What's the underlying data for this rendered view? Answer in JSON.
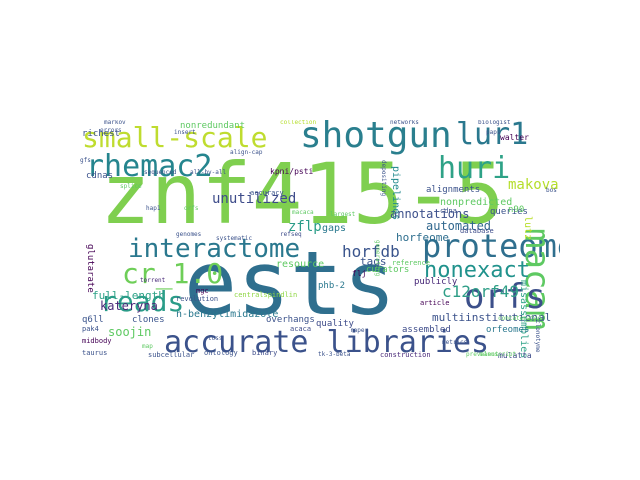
{
  "words": [
    {
      "text": "znf415-5",
      "color": "#7fcf4f"
    },
    {
      "text": "ests",
      "color": "#2f6f8e"
    },
    {
      "text": "shotgun",
      "color": "#2a7f8e"
    },
    {
      "text": "small-scale",
      "color": "#bfdc2f"
    },
    {
      "text": "lur1",
      "color": "#2a788e"
    },
    {
      "text": "rhemac2",
      "color": "#25858e"
    },
    {
      "text": "huri",
      "color": "#2ea287"
    },
    {
      "text": "interactome",
      "color": "#2a788e"
    },
    {
      "text": "proteome",
      "color": "#2f6f8e"
    },
    {
      "text": "macam",
      "color": "#5ec962"
    },
    {
      "text": "cr_1.0",
      "color": "#6ece58"
    },
    {
      "text": "reads",
      "color": "#2a9c88"
    },
    {
      "text": "orfs",
      "color": "#3c4f8a"
    },
    {
      "text": "nonexact",
      "color": "#20928c"
    },
    {
      "text": "accurate libraries",
      "color": "#3b528b"
    },
    {
      "text": "horfdb",
      "color": "#3a548c"
    },
    {
      "text": "c12orf49",
      "color": "#2f9e87"
    },
    {
      "text": "unutilized",
      "color": "#3e4c8a"
    },
    {
      "text": "makova",
      "color": "#b5de2b"
    },
    {
      "text": "zflp",
      "color": "#2a9c88"
    },
    {
      "text": "annotations",
      "color": "#3c508b"
    },
    {
      "text": "automated",
      "color": "#31688e"
    },
    {
      "text": "nonpredicted",
      "color": "#5ec962"
    },
    {
      "text": "horfeome",
      "color": "#2e6e8e"
    },
    {
      "text": "lutz",
      "color": "#b8de29"
    },
    {
      "text": "pipelines",
      "color": "#238a8d"
    },
    {
      "text": "alignments",
      "color": "#3b528b"
    },
    {
      "text": "nonredundant",
      "color": "#5ec962"
    },
    {
      "text": "walter",
      "color": "#440154"
    },
    {
      "text": "richest",
      "color": "#3b528b"
    },
    {
      "text": "glutarate",
      "color": "#440154"
    },
    {
      "text": "resource",
      "color": "#5ec962"
    },
    {
      "text": "gaps",
      "color": "#2a788e"
    },
    {
      "text": "tags",
      "color": "#3a548c"
    },
    {
      "text": "full-length",
      "color": "#2ea287"
    },
    {
      "text": "kateryna",
      "color": "#482878"
    },
    {
      "text": "soojin",
      "color": "#5ec962"
    },
    {
      "text": "n-benzylimidazole",
      "color": "#2a788e"
    },
    {
      "text": "multiinstitutional",
      "color": "#3b528b"
    },
    {
      "text": "curators",
      "color": "#5ec962"
    },
    {
      "text": "publicly",
      "color": "#482878"
    },
    {
      "text": "misassemblies",
      "color": "#2ea287"
    },
    {
      "text": "queries",
      "color": "#3b528b"
    },
    {
      "text": "orfeomes",
      "color": "#2a788e"
    },
    {
      "text": "assembled",
      "color": "#3e4c8a"
    },
    {
      "text": "overhangs",
      "color": "#3b528b"
    },
    {
      "text": "quality",
      "color": "#3e4c8a"
    },
    {
      "text": "phb-2",
      "color": "#2a788e"
    },
    {
      "text": "kpni/psti",
      "color": "#440154"
    },
    {
      "text": "q6ll",
      "color": "#3a548c"
    },
    {
      "text": "clones",
      "color": "#3a548c"
    },
    {
      "text": "cdnas",
      "color": "#3b528b"
    },
    {
      "text": "n90",
      "color": "#5ec962"
    },
    {
      "text": "accuracy",
      "color": "#3a548c"
    },
    {
      "text": "flj",
      "color": "#440154"
    },
    {
      "text": "mgc",
      "color": "#440154"
    },
    {
      "text": "revolution",
      "color": "#3b528b"
    },
    {
      "text": "centralspindlin",
      "color": "#8fd744"
    },
    {
      "text": "reference",
      "color": "#5ec962"
    },
    {
      "text": "database",
      "color": "#3e4c8a"
    },
    {
      "text": "cdna",
      "color": "#3b528b"
    },
    {
      "text": "article",
      "color": "#440154"
    },
    {
      "text": "acaca",
      "color": "#3e4c8a"
    },
    {
      "text": "binary",
      "color": "#3e4c8a"
    },
    {
      "text": "ontology",
      "color": "#3b528b"
    },
    {
      "text": "subcellular",
      "color": "#3b528b"
    },
    {
      "text": "taurus",
      "color": "#3b528b"
    },
    {
      "text": "midbody",
      "color": "#440154"
    },
    {
      "text": "pak4",
      "color": "#3b528b"
    },
    {
      "text": "construction",
      "color": "#482878"
    },
    {
      "text": "mulatta",
      "color": "#3e4c8a"
    },
    {
      "text": "insert",
      "color": "#3b528b"
    },
    {
      "text": "networks",
      "color": "#3b528b"
    },
    {
      "text": "biologist",
      "color": "#3b528b"
    },
    {
      "text": "markov",
      "color": "#3b528b"
    },
    {
      "text": "collection",
      "color": "#b5de2b"
    },
    {
      "text": "errors",
      "color": "#3b528b"
    },
    {
      "text": "paps",
      "color": "#3b528b"
    },
    {
      "text": "hap1",
      "color": "#3b528b"
    },
    {
      "text": "sequenced",
      "color": "#3b528b"
    },
    {
      "text": "all-by-all",
      "color": "#3b528b"
    },
    {
      "text": "align-cap",
      "color": "#3b528b"
    },
    {
      "text": "depositing",
      "color": "#3b528b"
    },
    {
      "text": "torrent",
      "color": "#482878"
    },
    {
      "text": "macaca",
      "color": "#5ec962"
    },
    {
      "text": "largest",
      "color": "#5ec962"
    },
    {
      "text": "generating",
      "color": "#5ec962"
    },
    {
      "text": "systematic",
      "color": "#3b528b"
    },
    {
      "text": "genomes",
      "color": "#3b528b"
    },
    {
      "text": "refseq",
      "color": "#3e4c8a"
    },
    {
      "text": "raper",
      "color": "#3b528b"
    },
    {
      "text": "clonotyme",
      "color": "#3b528b"
    },
    {
      "text": "bos",
      "color": "#3b528b"
    },
    {
      "text": "metrics",
      "color": "#3b528b"
    },
    {
      "text": "concatenated",
      "color": "#5ec962"
    },
    {
      "text": "manuscript",
      "color": "#5ec962"
    },
    {
      "text": "tk-3-beta",
      "color": "#3b528b"
    },
    {
      "text": "prevalent",
      "color": "#5ec962"
    },
    {
      "text": "splice",
      "color": "#5ec962"
    },
    {
      "text": "toss",
      "color": "#3b528b"
    },
    {
      "text": "map",
      "color": "#5ec962"
    },
    {
      "text": "orfs",
      "color": "#5ec962"
    },
    {
      "text": "gfs",
      "color": "#3b528b"
    }
  ]
}
